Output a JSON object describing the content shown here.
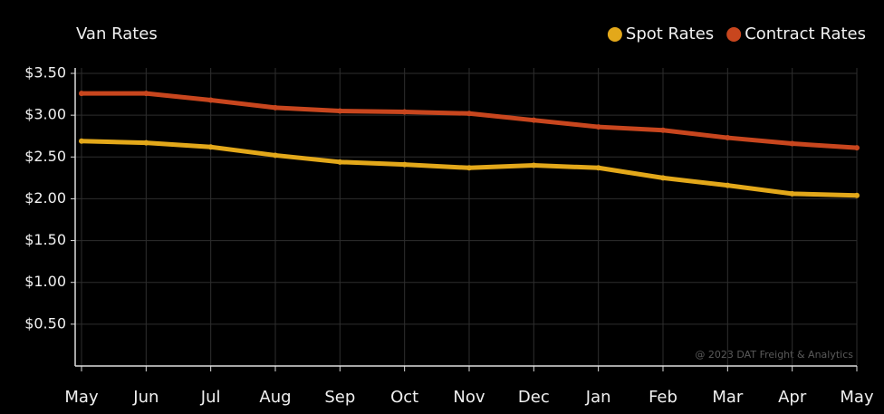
{
  "chart_data": {
    "type": "line",
    "title": "Van Rates",
    "categories": [
      "May",
      "Jun",
      "Jul",
      "Aug",
      "Sep",
      "Oct",
      "Nov",
      "Dec",
      "Jan",
      "Feb",
      "Mar",
      "Apr",
      "May"
    ],
    "series": [
      {
        "name": "Spot Rates",
        "color": "#e3a81a",
        "values": [
          2.69,
          2.67,
          2.62,
          2.52,
          2.44,
          2.41,
          2.37,
          2.4,
          2.37,
          2.25,
          2.16,
          2.06,
          2.04
        ]
      },
      {
        "name": "Contract Rates",
        "color": "#c8461e",
        "values": [
          3.26,
          3.26,
          3.18,
          3.09,
          3.05,
          3.04,
          3.02,
          2.94,
          2.86,
          2.82,
          2.73,
          2.66,
          2.61
        ]
      }
    ],
    "ylim": [
      0,
      3.5
    ],
    "yticks": [
      {
        "value": 0.5,
        "label": "$0.50"
      },
      {
        "value": 1,
        "label": "$1.00"
      },
      {
        "value": 1.5,
        "label": "$1.50"
      },
      {
        "value": 2,
        "label": "$2.00"
      },
      {
        "value": 2.5,
        "label": "$2.50"
      },
      {
        "value": 3,
        "label": "$3.00"
      },
      {
        "value": 3.5,
        "label": "$3.50"
      }
    ],
    "grid": true,
    "legend": "top-right",
    "annotation": "@ 2023 DAT Freight & Analytics"
  }
}
